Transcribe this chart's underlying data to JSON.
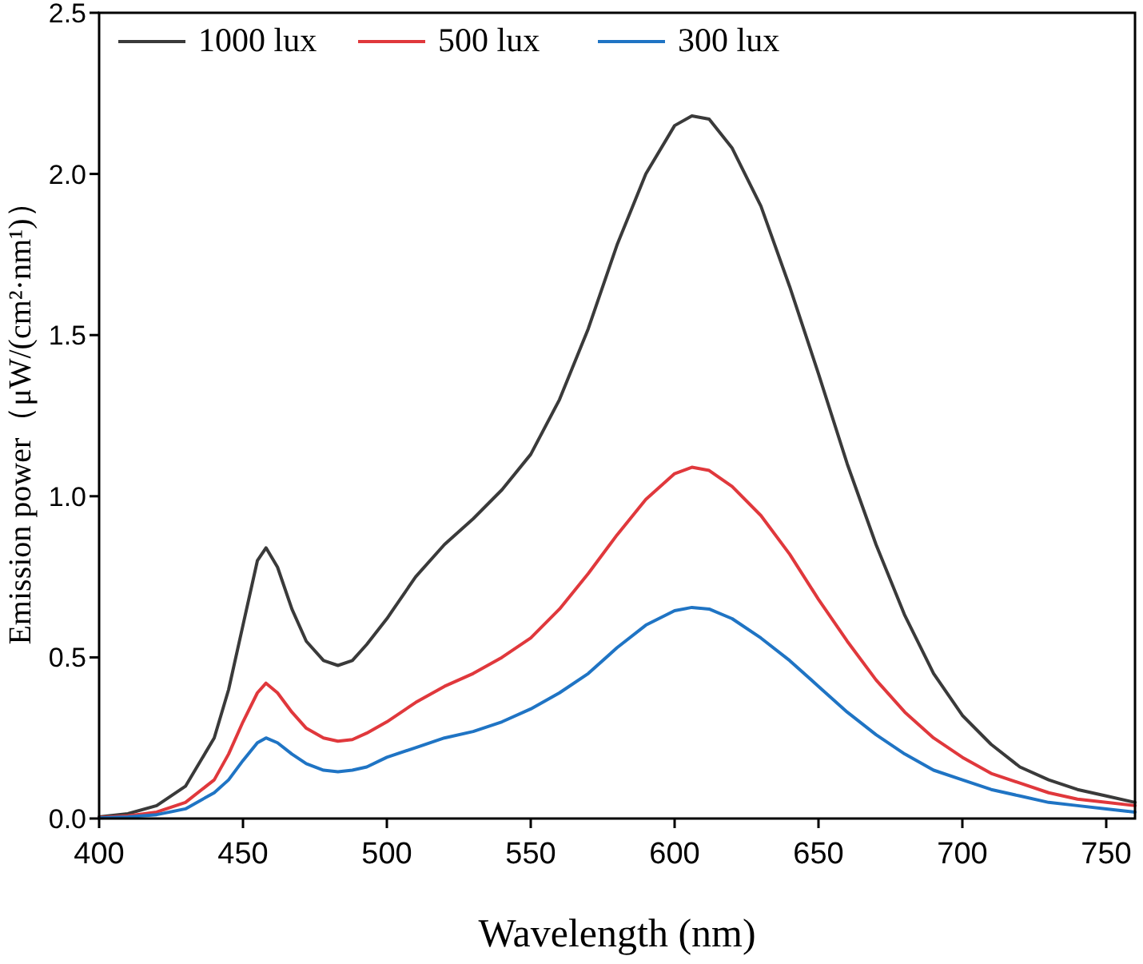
{
  "chart_data": {
    "type": "line",
    "xlabel": "Wavelength (nm)",
    "ylabel": "Emission power（μW/(cm²·nm¹)）",
    "x": [
      400,
      410,
      420,
      430,
      440,
      445,
      450,
      455,
      458,
      462,
      467,
      472,
      478,
      483,
      488,
      493,
      500,
      510,
      520,
      530,
      540,
      550,
      560,
      570,
      580,
      590,
      600,
      606,
      612,
      620,
      630,
      640,
      650,
      660,
      670,
      680,
      690,
      700,
      710,
      720,
      730,
      740,
      750,
      760
    ],
    "series": [
      {
        "name": "1000 lux",
        "color": "#3a3a3a",
        "values": [
          0.005,
          0.015,
          0.04,
          0.1,
          0.25,
          0.4,
          0.6,
          0.8,
          0.84,
          0.78,
          0.65,
          0.55,
          0.49,
          0.475,
          0.49,
          0.54,
          0.62,
          0.75,
          0.85,
          0.93,
          1.02,
          1.13,
          1.3,
          1.52,
          1.78,
          2.0,
          2.15,
          2.18,
          2.17,
          2.08,
          1.9,
          1.65,
          1.38,
          1.1,
          0.85,
          0.63,
          0.45,
          0.32,
          0.23,
          0.16,
          0.12,
          0.09,
          0.07,
          0.05
        ]
      },
      {
        "name": "500 lux",
        "color": "#e0383c",
        "values": [
          0.003,
          0.008,
          0.02,
          0.05,
          0.12,
          0.2,
          0.3,
          0.39,
          0.42,
          0.39,
          0.33,
          0.28,
          0.25,
          0.24,
          0.245,
          0.265,
          0.3,
          0.36,
          0.41,
          0.45,
          0.5,
          0.56,
          0.65,
          0.76,
          0.88,
          0.99,
          1.07,
          1.09,
          1.08,
          1.03,
          0.94,
          0.82,
          0.68,
          0.55,
          0.43,
          0.33,
          0.25,
          0.19,
          0.14,
          0.11,
          0.08,
          0.06,
          0.05,
          0.04
        ]
      },
      {
        "name": "300 lux",
        "color": "#1f74c4",
        "values": [
          0.002,
          0.005,
          0.012,
          0.03,
          0.08,
          0.12,
          0.18,
          0.235,
          0.25,
          0.235,
          0.2,
          0.17,
          0.15,
          0.145,
          0.15,
          0.16,
          0.19,
          0.22,
          0.25,
          0.27,
          0.3,
          0.34,
          0.39,
          0.45,
          0.53,
          0.6,
          0.645,
          0.655,
          0.65,
          0.62,
          0.56,
          0.49,
          0.41,
          0.33,
          0.26,
          0.2,
          0.15,
          0.12,
          0.09,
          0.07,
          0.05,
          0.04,
          0.03,
          0.02
        ]
      }
    ],
    "xlim": [
      400,
      760
    ],
    "ylim": [
      0,
      2.5
    ],
    "xticks": [
      400,
      450,
      500,
      550,
      600,
      650,
      700,
      750
    ],
    "yticks": [
      {
        "value": 0,
        "label": "0.0"
      },
      {
        "value": 0.5,
        "label": "0.5"
      },
      {
        "value": 1,
        "label": "1.0"
      },
      {
        "value": 1.5,
        "label": "1.5"
      },
      {
        "value": 2,
        "label": "2.0"
      },
      {
        "value": 2.5,
        "label": "2.5"
      }
    ],
    "legend": "top left",
    "grid": false
  }
}
